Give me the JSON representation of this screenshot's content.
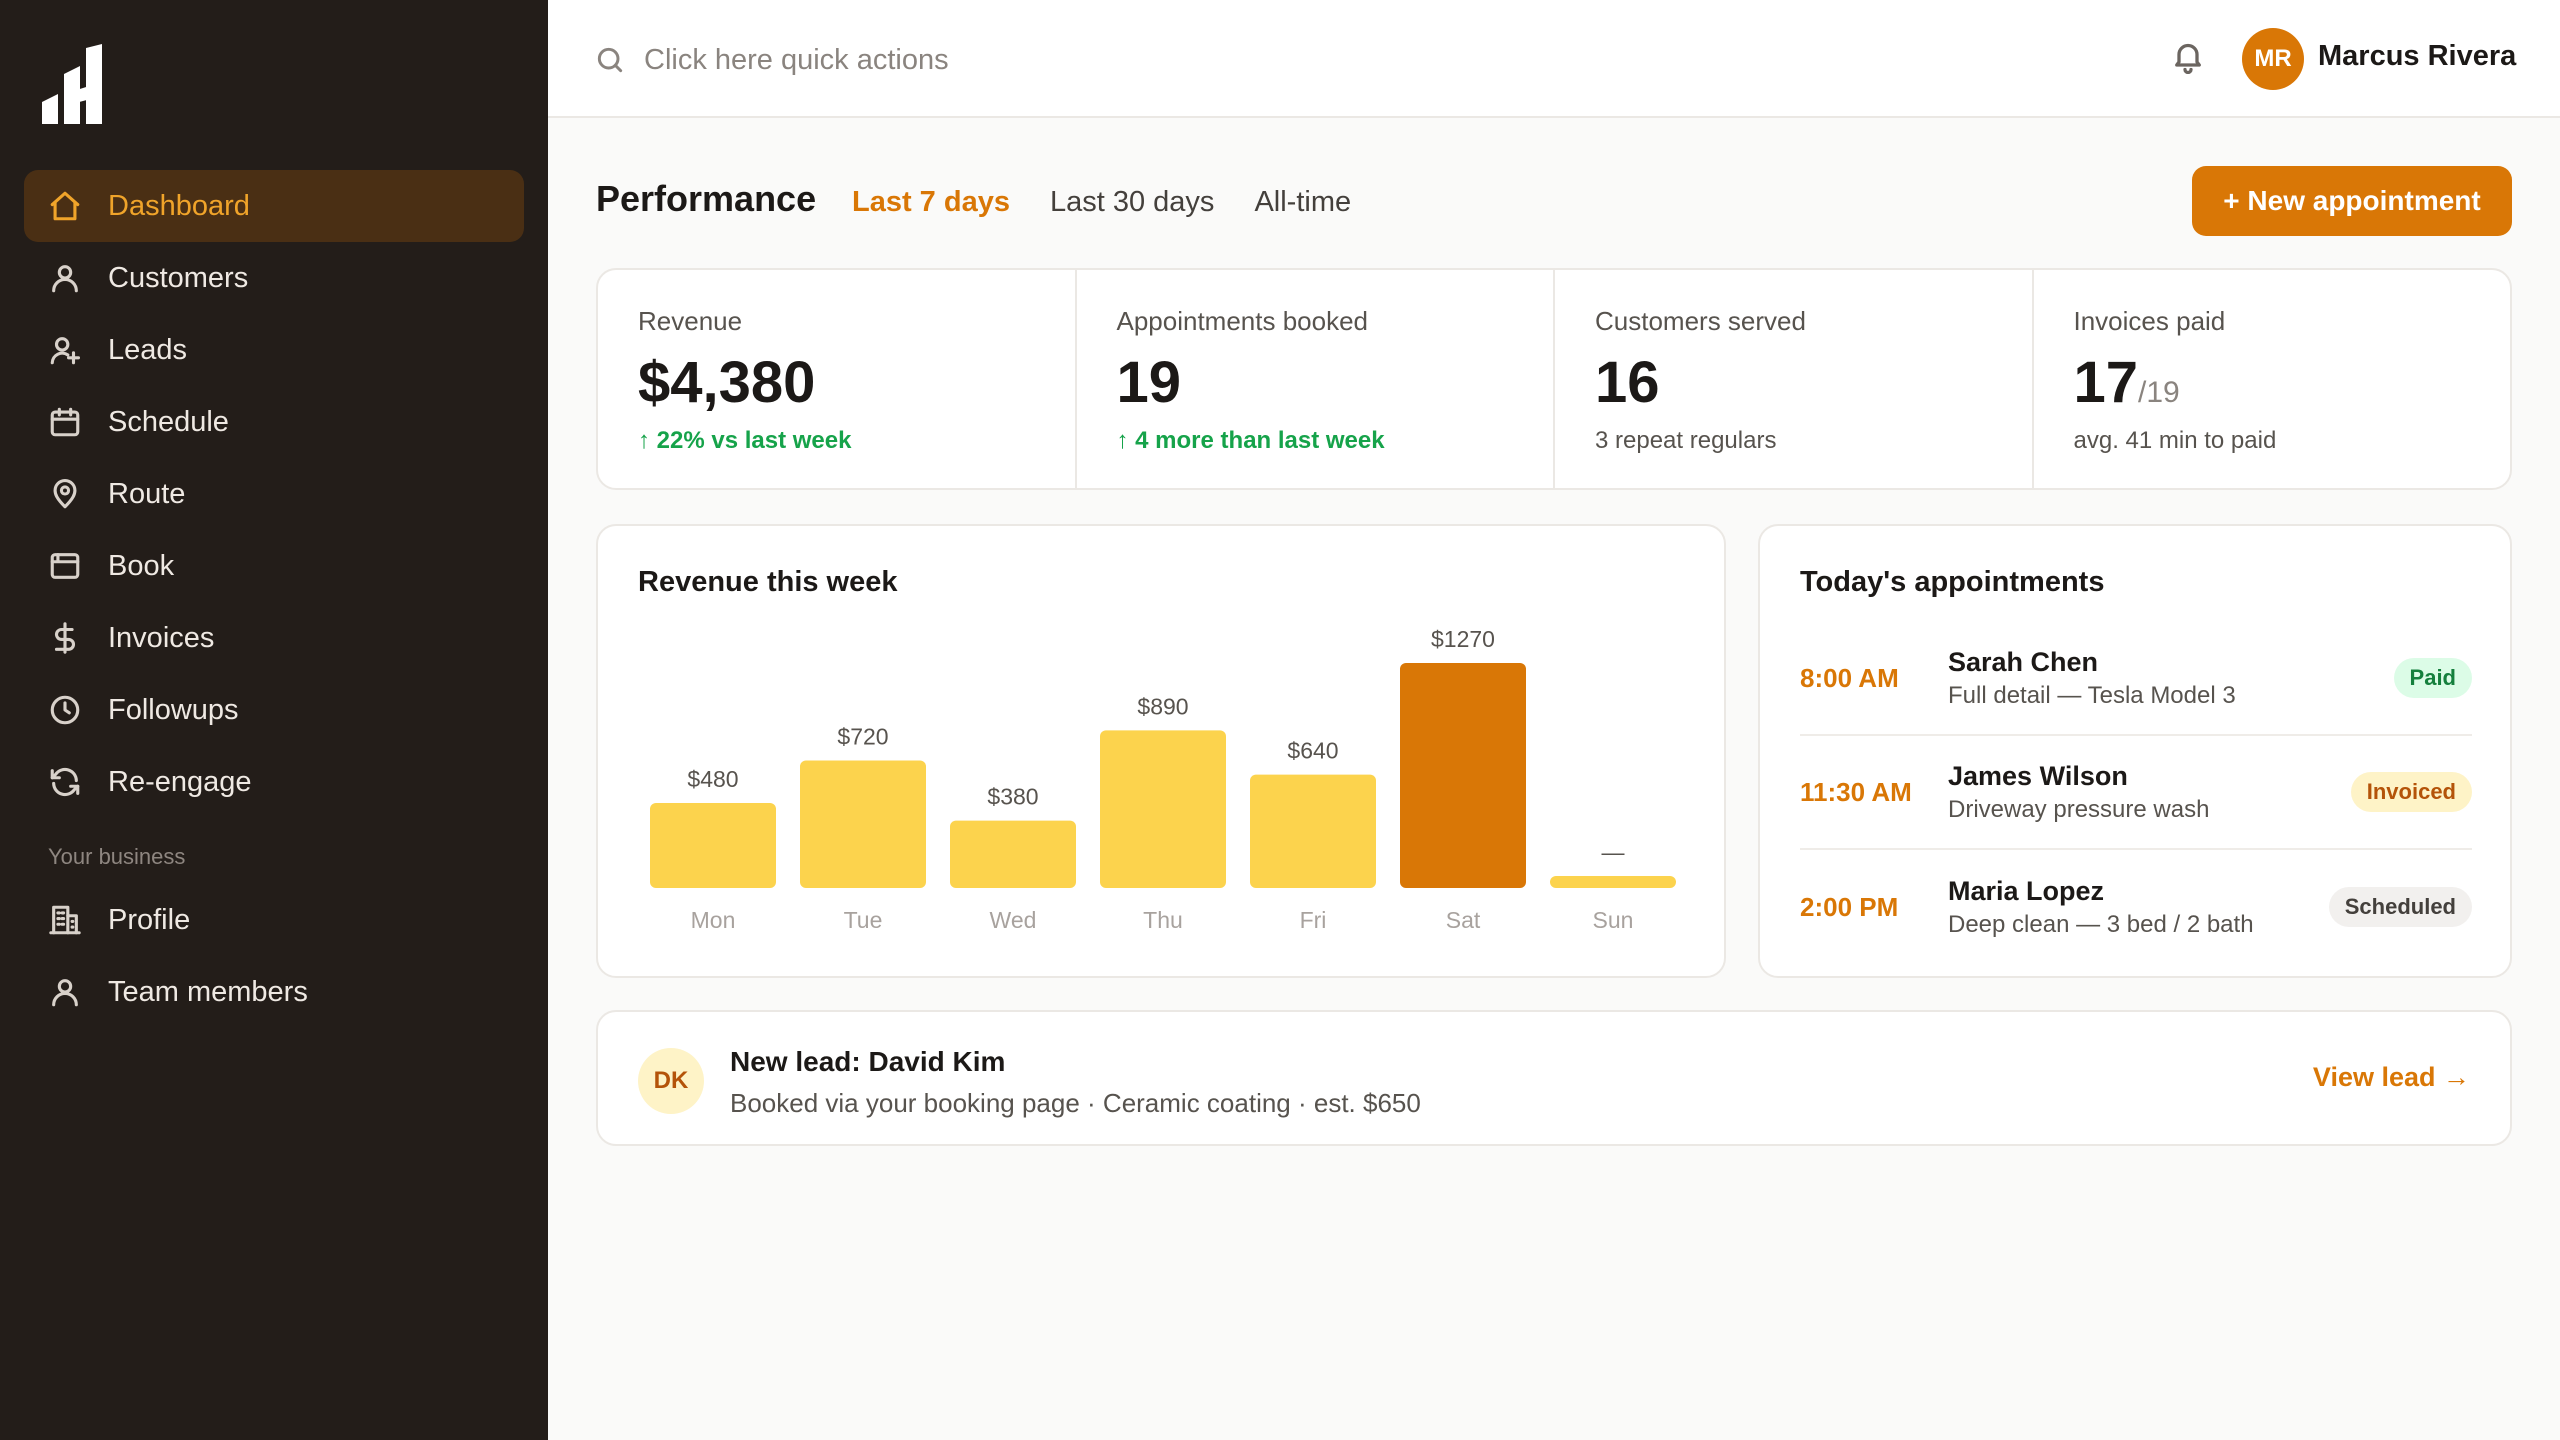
{
  "sidebar": {
    "logo": "app-logo",
    "items": [
      {
        "label": "Dashboard",
        "icon": "home-icon",
        "active": true
      },
      {
        "label": "Customers",
        "icon": "user-icon"
      },
      {
        "label": "Leads",
        "icon": "user-plus-icon"
      },
      {
        "label": "Schedule",
        "icon": "calendar-icon"
      },
      {
        "label": "Route",
        "icon": "map-pin-icon"
      },
      {
        "label": "Book",
        "icon": "browser-icon"
      },
      {
        "label": "Invoices",
        "icon": "dollar-icon"
      },
      {
        "label": "Followups",
        "icon": "clock-icon"
      },
      {
        "label": "Re-engage",
        "icon": "refresh-icon"
      }
    ],
    "section_label": "Your business",
    "business_items": [
      {
        "label": "Profile",
        "icon": "building-icon"
      },
      {
        "label": "Team members",
        "icon": "user-icon"
      }
    ]
  },
  "topbar": {
    "search_placeholder": "Click here quick actions",
    "avatar_initials": "MR",
    "user_name": "Marcus Rivera"
  },
  "main": {
    "title": "Performance",
    "tabs": [
      {
        "label": "Last 7 days",
        "active": true
      },
      {
        "label": "Last 30 days"
      },
      {
        "label": "All-time"
      }
    ],
    "new_button": "+ New appointment",
    "stats": [
      {
        "label": "Revenue",
        "value": "$4,380",
        "sub": "↑ 22% vs last week",
        "up": true
      },
      {
        "label": "Appointments booked",
        "value": "19",
        "sub": "↑ 4 more than last week",
        "up": true
      },
      {
        "label": "Customers served",
        "value": "16",
        "sub": "3 repeat regulars"
      },
      {
        "label": "Invoices paid",
        "value": "17",
        "value_of": "/19",
        "sub": "avg. 41 min to paid"
      }
    ]
  },
  "chart_title": "Revenue this week",
  "chart_data": {
    "type": "bar",
    "categories": [
      "Mon",
      "Tue",
      "Wed",
      "Thu",
      "Fri",
      "Sat",
      "Sun"
    ],
    "values": [
      480,
      720,
      380,
      890,
      640,
      1270,
      0
    ],
    "data_labels": [
      "$480",
      "$720",
      "$380",
      "$890",
      "$640",
      "$1270",
      "—"
    ],
    "highlight_index": 5,
    "colors": {
      "bar": "#fcd34d",
      "highlight": "#d97706"
    }
  },
  "appointments": {
    "title": "Today's appointments",
    "items": [
      {
        "time": "8:00 AM",
        "name": "Sarah Chen",
        "desc": "Full detail — Tesla Model 3",
        "status": "Paid",
        "status_class": "paid"
      },
      {
        "time": "11:30 AM",
        "name": "James Wilson",
        "desc": "Driveway pressure wash",
        "status": "Invoiced",
        "status_class": "invoiced"
      },
      {
        "time": "2:00 PM",
        "name": "Maria Lopez",
        "desc": "Deep clean — 3 bed / 2 bath",
        "status": "Scheduled",
        "status_class": "scheduled"
      }
    ]
  },
  "lead": {
    "initials": "DK",
    "title": "New lead: David Kim",
    "desc": "Booked via your booking page · Ceramic coating · est. $650",
    "link": "View lead →"
  }
}
